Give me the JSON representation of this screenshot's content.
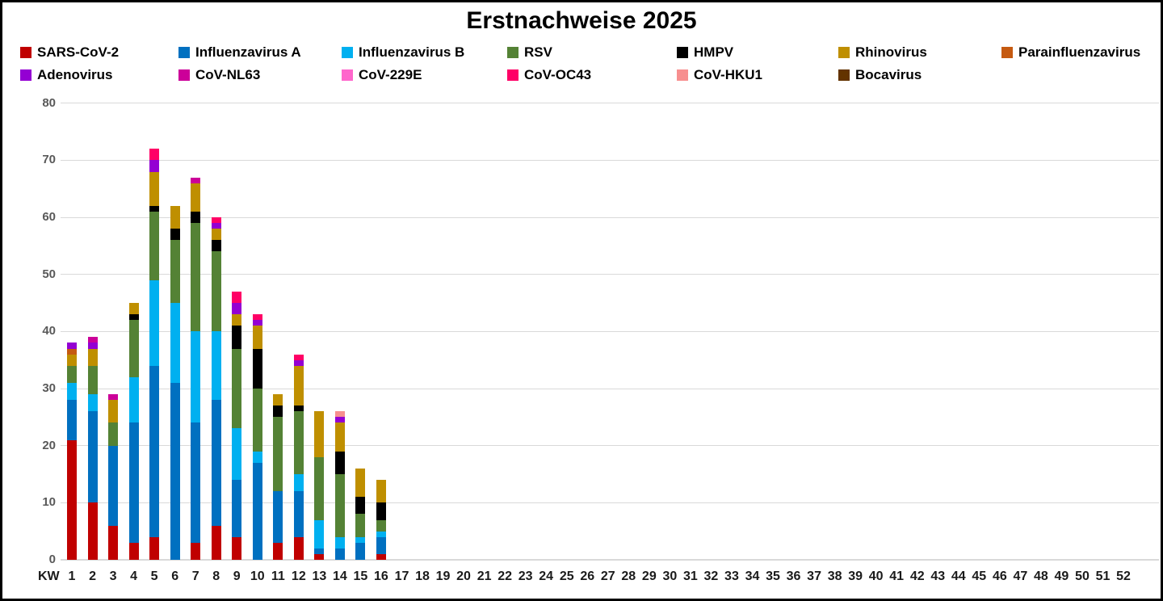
{
  "title": "Erstnachweise 2025",
  "x_axis": {
    "label": "KW",
    "categories": [
      "1",
      "2",
      "3",
      "4",
      "5",
      "6",
      "7",
      "8",
      "9",
      "10",
      "11",
      "12",
      "13",
      "14",
      "15",
      "16",
      "17",
      "18",
      "19",
      "20",
      "21",
      "22",
      "23",
      "24",
      "25",
      "26",
      "27",
      "28",
      "29",
      "30",
      "31",
      "32",
      "33",
      "34",
      "35",
      "36",
      "37",
      "38",
      "39",
      "40",
      "41",
      "42",
      "43",
      "44",
      "45",
      "46",
      "47",
      "48",
      "49",
      "50",
      "51",
      "52"
    ]
  },
  "y_axis": {
    "ticks": [
      0,
      10,
      20,
      30,
      40,
      50,
      60,
      70,
      80
    ]
  },
  "colors": {
    "grid": "#d9d9d9",
    "y_tick_text": "#595959",
    "x_tick_text": "#1a1a1a",
    "frame_border": "#000000"
  },
  "chart_data": {
    "type": "bar",
    "stacked": true,
    "title": "Erstnachweise 2025",
    "xlabel": "KW",
    "ylabel": "",
    "ylim": [
      0,
      80
    ],
    "grid": "horizontal",
    "legend_position": "top",
    "categories_weeks": "1-52",
    "weeks_plotted": [
      1,
      2,
      3,
      4,
      5,
      6,
      7,
      8,
      9,
      10,
      11,
      12,
      13,
      14,
      15,
      16
    ],
    "values_note": "weeks 17-52 = 0 for all series",
    "series": [
      {
        "name": "SARS-CoV-2",
        "color": "#c00000",
        "values": [
          21,
          10,
          6,
          3,
          4,
          0,
          3,
          6,
          4,
          0,
          3,
          4,
          1,
          0,
          0,
          1
        ]
      },
      {
        "name": "Influenzavirus A",
        "color": "#0070c0",
        "values": [
          7,
          16,
          14,
          21,
          30,
          31,
          21,
          22,
          10,
          17,
          9,
          8,
          1,
          2,
          3,
          3
        ]
      },
      {
        "name": "Influenzavirus B",
        "color": "#00b0f0",
        "values": [
          3,
          3,
          0,
          8,
          15,
          14,
          16,
          12,
          9,
          2,
          0,
          3,
          5,
          2,
          1,
          1
        ]
      },
      {
        "name": "RSV",
        "color": "#548235",
        "values": [
          3,
          5,
          4,
          10,
          12,
          11,
          19,
          14,
          14,
          11,
          13,
          11,
          11,
          11,
          4,
          2
        ]
      },
      {
        "name": "HMPV",
        "color": "#000000",
        "values": [
          0,
          0,
          0,
          1,
          1,
          2,
          2,
          2,
          4,
          7,
          2,
          1,
          0,
          4,
          3,
          3
        ]
      },
      {
        "name": "Rhinovirus",
        "color": "#bf8f00",
        "values": [
          2,
          3,
          4,
          2,
          6,
          4,
          5,
          2,
          2,
          4,
          2,
          7,
          8,
          5,
          5,
          4
        ]
      },
      {
        "name": "Parainfluenzavirus",
        "color": "#c55a11",
        "values": [
          1,
          0,
          0,
          0,
          0,
          0,
          0,
          0,
          0,
          0,
          0,
          0,
          0,
          0,
          0,
          0
        ]
      },
      {
        "name": "Adenovirus",
        "color": "#9400d3",
        "values": [
          1,
          1,
          0,
          0,
          2,
          0,
          0,
          1,
          2,
          1,
          0,
          1,
          0,
          1,
          0,
          0
        ]
      },
      {
        "name": "CoV-NL63",
        "color": "#cc0099",
        "values": [
          0,
          1,
          1,
          0,
          0,
          0,
          1,
          0,
          0,
          0,
          0,
          0,
          0,
          0,
          0,
          0
        ]
      },
      {
        "name": "CoV-229E",
        "color": "#ff66cc",
        "values": [
          0,
          0,
          0,
          0,
          0,
          0,
          0,
          0,
          0,
          0,
          0,
          0,
          0,
          0,
          0,
          0
        ]
      },
      {
        "name": "CoV-OC43",
        "color": "#ff0066",
        "values": [
          0,
          0,
          0,
          0,
          2,
          0,
          0,
          1,
          2,
          1,
          0,
          1,
          0,
          0,
          0,
          0
        ]
      },
      {
        "name": "CoV-HKU1",
        "color": "#f78f8f",
        "values": [
          0,
          0,
          0,
          0,
          0,
          0,
          0,
          0,
          0,
          0,
          0,
          0,
          0,
          1,
          0,
          0
        ]
      },
      {
        "name": "Bocavirus",
        "color": "#633300",
        "values": [
          0,
          0,
          0,
          0,
          0,
          0,
          0,
          0,
          0,
          0,
          0,
          0,
          0,
          0,
          0,
          0
        ]
      }
    ],
    "bar_totals": [
      38,
      39,
      29,
      45,
      72,
      62,
      67,
      60,
      47,
      43,
      29,
      36,
      26,
      26,
      16,
      14
    ]
  }
}
